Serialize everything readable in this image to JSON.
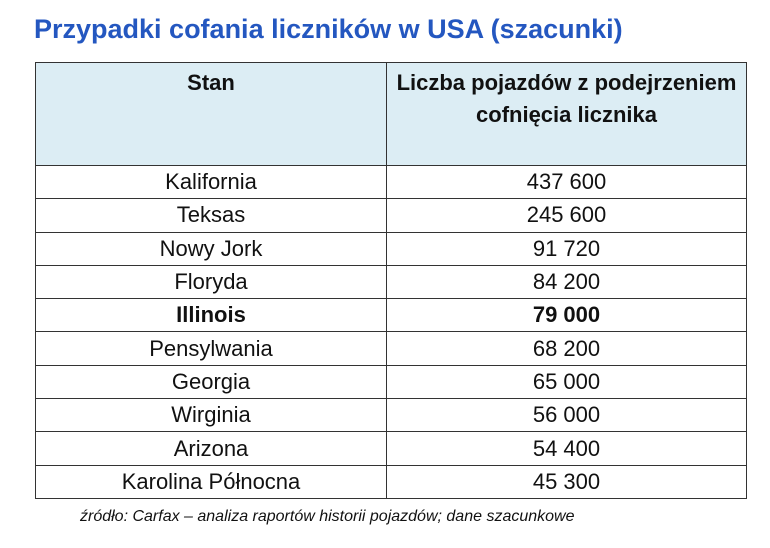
{
  "title": "Przypadki cofania liczników w USA (szacunki)",
  "table": {
    "header": [
      "Stan",
      "Liczba pojazdów z podejrzeniem cofnięcia licznika"
    ],
    "rows": [
      [
        "Kalifornia",
        "437 600"
      ],
      [
        "Teksas",
        "245 600"
      ],
      [
        "Nowy Jork",
        "91 720"
      ],
      [
        "Floryda",
        "84 200"
      ],
      [
        "Illinois",
        "79 000"
      ],
      [
        "Pensylwania",
        "68 200"
      ],
      [
        "Georgia",
        "65 000"
      ],
      [
        "Wirginia",
        "56 000"
      ],
      [
        "Arizona",
        "54 400"
      ],
      [
        "Karolina Północna",
        "45 300"
      ]
    ],
    "emphasized_rows": [
      4
    ]
  },
  "source": "źródło: Carfax – analiza raportów historii pojazdów; dane szacunkowe"
}
